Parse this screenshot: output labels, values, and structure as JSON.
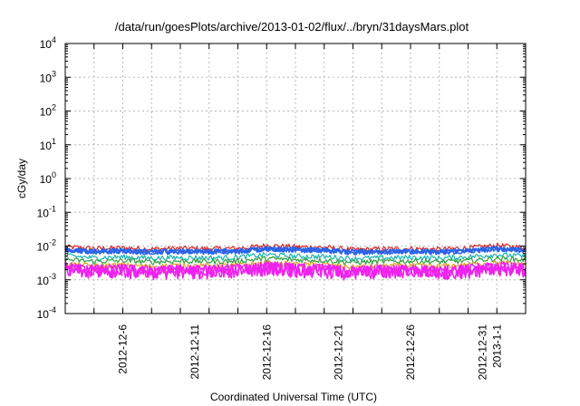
{
  "chart_data": {
    "type": "line",
    "title": "/data/run/goesPlots/archive/2013-01-02/flux/../bryn/31daysMars.plot",
    "xlabel": "Coordinated Universal Time (UTC)",
    "ylabel": "cGy/day",
    "y_scale": "log",
    "ylim": [
      0.0001,
      10000
    ],
    "xlim": [
      "2012-12-02",
      "2013-01-03"
    ],
    "grid": true,
    "y_ticks": [
      {
        "value": 0.0001,
        "base": "10",
        "exp": "-4"
      },
      {
        "value": 0.001,
        "base": "10",
        "exp": "-3"
      },
      {
        "value": 0.01,
        "base": "10",
        "exp": "-2"
      },
      {
        "value": 0.1,
        "base": "10",
        "exp": "-1"
      },
      {
        "value": 1,
        "base": "10",
        "exp": "0"
      },
      {
        "value": 10,
        "base": "10",
        "exp": "1"
      },
      {
        "value": 100,
        "base": "10",
        "exp": "2"
      },
      {
        "value": 1000,
        "base": "10",
        "exp": "3"
      },
      {
        "value": 10000,
        "base": "10",
        "exp": "4"
      }
    ],
    "x_tick_labels": [
      "2012-12-6",
      "2012-12-11",
      "2012-12-16",
      "2012-12-21",
      "2012-12-26",
      "2012-12-31",
      "2013-1-1"
    ],
    "x_ticks_labeled": [
      {
        "date": "2012-12-06",
        "label": "2012-12-6"
      },
      {
        "date": "2012-12-11",
        "label": "2012-12-11"
      },
      {
        "date": "2012-12-16",
        "label": "2012-12-16"
      },
      {
        "date": "2012-12-21",
        "label": "2012-12-21"
      },
      {
        "date": "2012-12-26",
        "label": "2012-12-26"
      },
      {
        "date": "2012-12-31",
        "label": "2012-12-31"
      },
      {
        "date": "2013-01-01",
        "label": "2013-1-1"
      }
    ],
    "x_grid_dates": [
      "2012-12-02",
      "2012-12-04",
      "2012-12-06",
      "2012-12-08",
      "2012-12-10",
      "2012-12-12",
      "2012-12-14",
      "2012-12-16",
      "2012-12-18",
      "2012-12-20",
      "2012-12-22",
      "2012-12-24",
      "2012-12-26",
      "2012-12-28",
      "2012-12-30",
      "2013-01-01",
      "2013-01-03"
    ],
    "x": [
      "2012-12-02",
      "2012-12-04",
      "2012-12-06",
      "2012-12-08",
      "2012-12-10",
      "2012-12-12",
      "2012-12-14",
      "2012-12-16",
      "2012-12-18",
      "2012-12-20",
      "2012-12-22",
      "2012-12-24",
      "2012-12-26",
      "2012-12-28",
      "2012-12-30",
      "2013-01-01",
      "2013-01-03"
    ],
    "series": [
      {
        "color": "#e0231f",
        "values": [
          0.0095,
          0.0085,
          0.0088,
          0.0082,
          0.0086,
          0.0083,
          0.0085,
          0.0105,
          0.0095,
          0.0092,
          0.0078,
          0.0082,
          0.0084,
          0.008,
          0.0088,
          0.0105,
          0.009
        ]
      },
      {
        "color": "#2a63e8",
        "values": [
          0.0078,
          0.007,
          0.0072,
          0.0068,
          0.007,
          0.0069,
          0.0071,
          0.0085,
          0.0078,
          0.0075,
          0.0066,
          0.0068,
          0.007,
          0.0067,
          0.0072,
          0.0085,
          0.0075
        ]
      },
      {
        "color": "#18b3b0",
        "values": [
          0.0052,
          0.0045,
          0.0048,
          0.0044,
          0.0046,
          0.0045,
          0.0047,
          0.0056,
          0.005,
          0.0049,
          0.0043,
          0.0045,
          0.0046,
          0.0044,
          0.0048,
          0.0056,
          0.005
        ]
      },
      {
        "color": "#2e9e40",
        "values": [
          0.004,
          0.0035,
          0.0037,
          0.0034,
          0.0036,
          0.0035,
          0.0036,
          0.0043,
          0.0039,
          0.0038,
          0.0033,
          0.0035,
          0.0036,
          0.0034,
          0.0037,
          0.0043,
          0.0039
        ]
      },
      {
        "color": "#e0a31a",
        "values": [
          0.003,
          0.0026,
          0.0028,
          0.0025,
          0.0027,
          0.0026,
          0.0027,
          0.0032,
          0.0029,
          0.0028,
          0.0024,
          0.0026,
          0.0027,
          0.0025,
          0.0028,
          0.0032,
          0.0029
        ]
      },
      {
        "color": "#ee22ee",
        "values": [
          0.0022,
          0.0019,
          0.002,
          0.0018,
          0.0019,
          0.0019,
          0.002,
          0.0024,
          0.0021,
          0.002,
          0.0017,
          0.0019,
          0.0019,
          0.0018,
          0.002,
          0.0024,
          0.0021
        ]
      }
    ]
  }
}
